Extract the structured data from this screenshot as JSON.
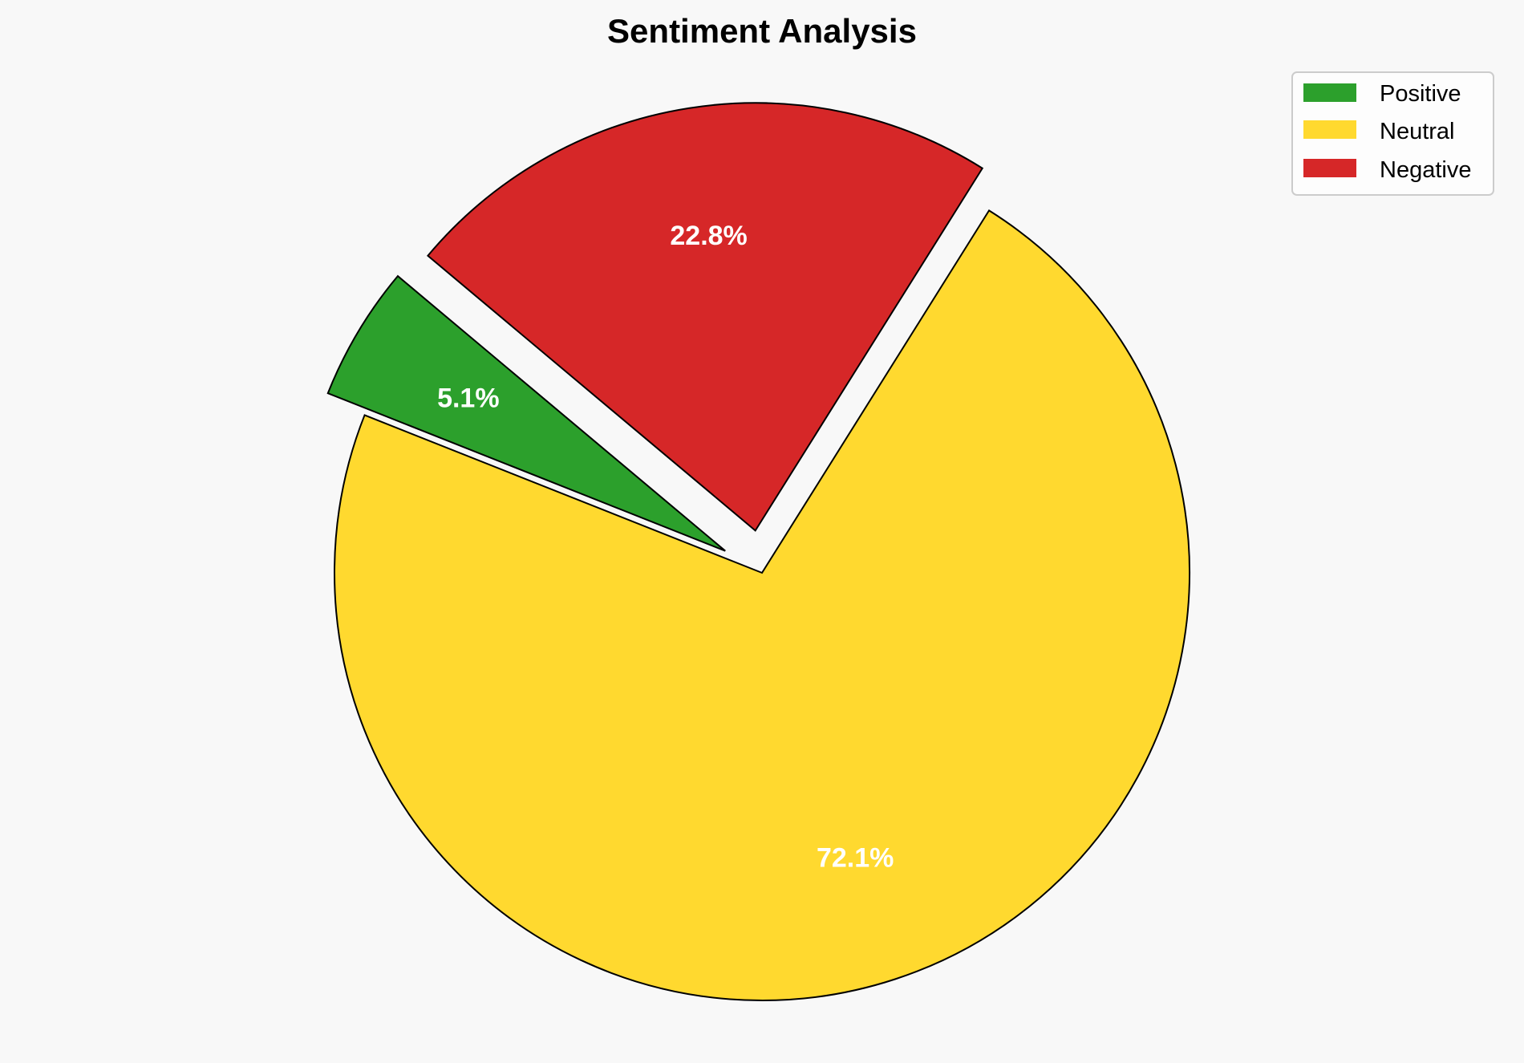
{
  "chart_data": {
    "type": "pie",
    "title": "Sentiment Analysis",
    "categories": [
      "Positive",
      "Neutral",
      "Negative"
    ],
    "values": [
      5.1,
      72.1,
      22.8
    ],
    "labels": [
      "5.1%",
      "72.1%",
      "22.8%"
    ],
    "colors": [
      "#2ca02c",
      "#ffd92f",
      "#d62728"
    ],
    "explode": [
      0.1,
      0,
      0.1
    ],
    "start_angle": 140,
    "legend": {
      "position": "top-right",
      "entries": [
        "Positive",
        "Neutral",
        "Negative"
      ]
    }
  }
}
